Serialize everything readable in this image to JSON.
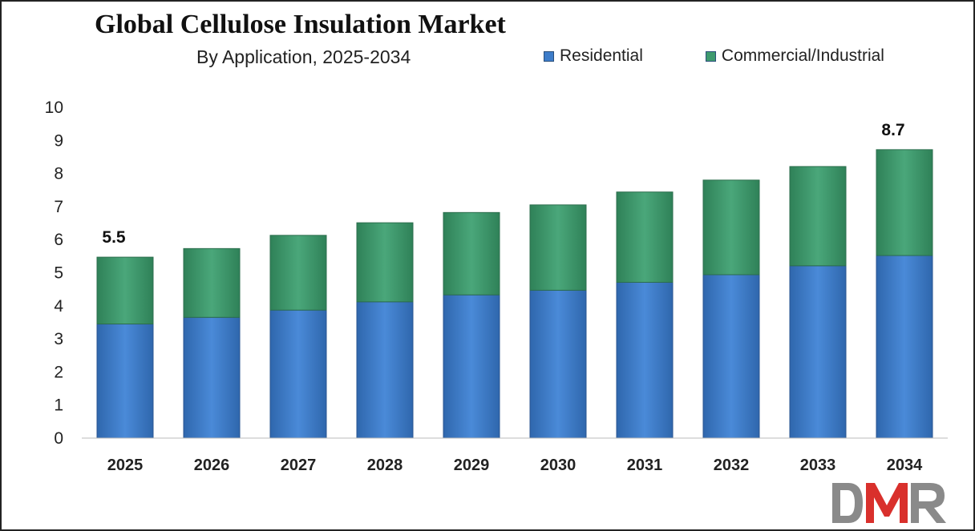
{
  "chart_data": {
    "type": "bar",
    "stacked": true,
    "title": "Global Cellulose Insulation Market",
    "subtitle": "By Application, 2025-2034",
    "categories": [
      "2025",
      "2026",
      "2027",
      "2028",
      "2029",
      "2030",
      "2031",
      "2032",
      "2033",
      "2034"
    ],
    "series": [
      {
        "name": "Residential",
        "color": "#3d7cc9",
        "values": [
          3.45,
          3.65,
          3.87,
          4.12,
          4.33,
          4.47,
          4.71,
          4.94,
          5.21,
          5.52
        ]
      },
      {
        "name": "Commercial/Industrial",
        "color": "#3e9a6e",
        "values": [
          2.02,
          2.08,
          2.26,
          2.39,
          2.49,
          2.58,
          2.73,
          2.86,
          3.0,
          3.2
        ]
      }
    ],
    "total_labels": [
      {
        "category": "2025",
        "label": "5.5"
      },
      {
        "category": "2034",
        "label": "8.7"
      }
    ],
    "ylim": [
      0,
      10
    ],
    "yticks": [
      0,
      1,
      2,
      3,
      4,
      5,
      6,
      7,
      8,
      9,
      10
    ],
    "xlabel": "",
    "ylabel": "",
    "grid": false,
    "legend_position": "top-right"
  },
  "logo": {
    "text": "DMR",
    "colors": {
      "d": "#8a8a8a",
      "m": "#d9302c",
      "r": "#8a8a8a"
    }
  }
}
